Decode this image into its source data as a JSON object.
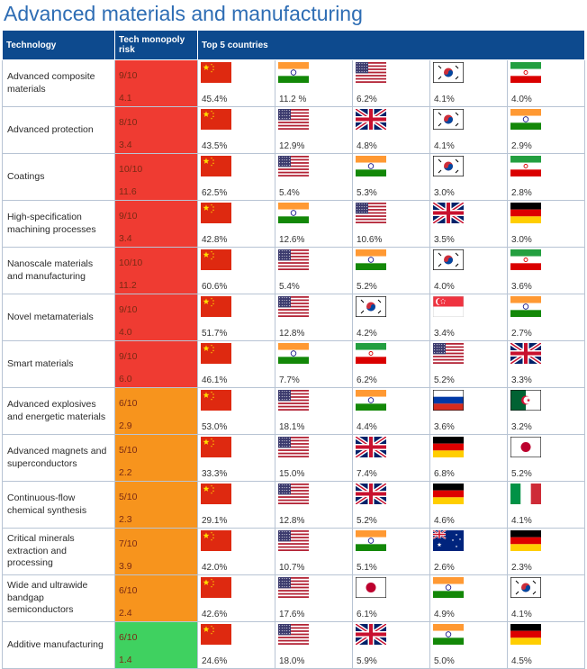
{
  "title": "Advanced materials and manufacturing",
  "headers": {
    "technology": "Technology",
    "risk": "Tech monopoly risk",
    "top5": "Top 5 countries"
  },
  "risk_colors": {
    "high": "#ef3b32",
    "medium": "#f7941d",
    "low": "#3fd160"
  },
  "chart_data": {
    "type": "table",
    "title": "Advanced materials and manufacturing",
    "columns": [
      "Technology",
      "Tech monopoly risk",
      "Top 5 countries"
    ],
    "rows": [
      {
        "technology": "Advanced composite materials",
        "risk": "9/10",
        "risk_value": "4.1",
        "level": "high",
        "countries": [
          {
            "flag": "china",
            "pct": "45.4%"
          },
          {
            "flag": "india",
            "pct": "11.2 %"
          },
          {
            "flag": "usa",
            "pct": "6.2%"
          },
          {
            "flag": "south-korea",
            "pct": "4.1%"
          },
          {
            "flag": "iran",
            "pct": "4.0%"
          }
        ]
      },
      {
        "technology": "Advanced protection",
        "risk": "8/10",
        "risk_value": "3.4",
        "level": "high",
        "countries": [
          {
            "flag": "china",
            "pct": "43.5%"
          },
          {
            "flag": "usa",
            "pct": "12.9%"
          },
          {
            "flag": "uk",
            "pct": "4.8%"
          },
          {
            "flag": "south-korea",
            "pct": "4.1%"
          },
          {
            "flag": "india",
            "pct": "2.9%"
          }
        ]
      },
      {
        "technology": "Coatings",
        "risk": "10/10",
        "risk_value": "11.6",
        "level": "high",
        "countries": [
          {
            "flag": "china",
            "pct": "62.5%"
          },
          {
            "flag": "usa",
            "pct": "5.4%"
          },
          {
            "flag": "india",
            "pct": "5.3%"
          },
          {
            "flag": "south-korea",
            "pct": "3.0%"
          },
          {
            "flag": "iran",
            "pct": "2.8%"
          }
        ]
      },
      {
        "technology": "High-specification machining processes",
        "risk": "9/10",
        "risk_value": "3.4",
        "level": "high",
        "countries": [
          {
            "flag": "china",
            "pct": "42.8%"
          },
          {
            "flag": "india",
            "pct": "12.6%"
          },
          {
            "flag": "usa",
            "pct": "10.6%"
          },
          {
            "flag": "uk",
            "pct": "3.5%"
          },
          {
            "flag": "germany",
            "pct": "3.0%"
          }
        ]
      },
      {
        "technology": "Nanoscale materials and manufacturing",
        "risk": "10/10",
        "risk_value": "11.2",
        "level": "high",
        "countries": [
          {
            "flag": "china",
            "pct": "60.6%"
          },
          {
            "flag": "usa",
            "pct": "5.4%"
          },
          {
            "flag": "india",
            "pct": "5.2%"
          },
          {
            "flag": "south-korea",
            "pct": "4.0%"
          },
          {
            "flag": "iran",
            "pct": "3.6%"
          }
        ]
      },
      {
        "technology": "Novel metamaterials",
        "risk": "9/10",
        "risk_value": "4.0",
        "level": "high",
        "countries": [
          {
            "flag": "china",
            "pct": "51.7%"
          },
          {
            "flag": "usa",
            "pct": "12.8%"
          },
          {
            "flag": "south-korea",
            "pct": "4.2%"
          },
          {
            "flag": "singapore",
            "pct": "3.4%"
          },
          {
            "flag": "india",
            "pct": "2.7%"
          }
        ]
      },
      {
        "technology": "Smart materials",
        "risk": "9/10",
        "risk_value": "6.0",
        "level": "high",
        "countries": [
          {
            "flag": "china",
            "pct": "46.1%"
          },
          {
            "flag": "india",
            "pct": "7.7%"
          },
          {
            "flag": "iran",
            "pct": "6.2%"
          },
          {
            "flag": "usa",
            "pct": "5.2%"
          },
          {
            "flag": "uk",
            "pct": "3.3%"
          }
        ]
      },
      {
        "technology": "Advanced explosives and energetic materials",
        "risk": "6/10",
        "risk_value": "2.9",
        "level": "medium",
        "countries": [
          {
            "flag": "china",
            "pct": "53.0%"
          },
          {
            "flag": "usa",
            "pct": "18.1%"
          },
          {
            "flag": "india",
            "pct": "4.4%"
          },
          {
            "flag": "russia",
            "pct": "3.6%"
          },
          {
            "flag": "algeria",
            "pct": "3.2%"
          }
        ]
      },
      {
        "technology": "Advanced magnets and superconductors",
        "risk": "5/10",
        "risk_value": "2.2",
        "level": "medium",
        "countries": [
          {
            "flag": "china",
            "pct": "33.3%"
          },
          {
            "flag": "usa",
            "pct": "15.0%"
          },
          {
            "flag": "uk",
            "pct": "7.4%"
          },
          {
            "flag": "germany",
            "pct": "6.8%"
          },
          {
            "flag": "japan",
            "pct": "5.2%"
          }
        ]
      },
      {
        "technology": "Continuous-flow chemical synthesis",
        "risk": "5/10",
        "risk_value": "2.3",
        "level": "medium",
        "countries": [
          {
            "flag": "china",
            "pct": "29.1%"
          },
          {
            "flag": "usa",
            "pct": "12.8%"
          },
          {
            "flag": "uk",
            "pct": "5.2%"
          },
          {
            "flag": "germany",
            "pct": "4.6%"
          },
          {
            "flag": "italy",
            "pct": "4.1%"
          }
        ]
      },
      {
        "technology": "Critical minerals extraction and processing",
        "risk": "7/10",
        "risk_value": "3.9",
        "level": "medium",
        "countries": [
          {
            "flag": "china",
            "pct": "42.0%"
          },
          {
            "flag": "usa",
            "pct": "10.7%"
          },
          {
            "flag": "india",
            "pct": "5.1%"
          },
          {
            "flag": "australia",
            "pct": "2.6%"
          },
          {
            "flag": "germany",
            "pct": "2.3%"
          }
        ]
      },
      {
        "technology": "Wide and ultrawide bandgap semiconductors",
        "risk": "6/10",
        "risk_value": "2.4",
        "level": "medium",
        "countries": [
          {
            "flag": "china",
            "pct": "42.6%"
          },
          {
            "flag": "usa",
            "pct": "17.6%"
          },
          {
            "flag": "japan",
            "pct": "6.1%"
          },
          {
            "flag": "india",
            "pct": "4.9%"
          },
          {
            "flag": "south-korea",
            "pct": "4.1%"
          }
        ]
      },
      {
        "technology": "Additive manufacturing",
        "risk": "6/10",
        "risk_value": "1.4",
        "level": "low",
        "countries": [
          {
            "flag": "china",
            "pct": "24.6%"
          },
          {
            "flag": "usa",
            "pct": "18.0%"
          },
          {
            "flag": "uk",
            "pct": "5.9%"
          },
          {
            "flag": "india",
            "pct": "5.0%"
          },
          {
            "flag": "germany",
            "pct": "4.5%"
          }
        ]
      }
    ]
  }
}
